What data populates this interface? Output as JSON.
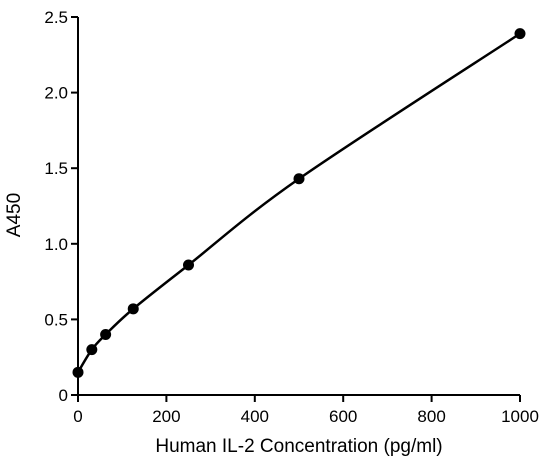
{
  "chart_data": {
    "type": "scatter",
    "title": "",
    "xlabel": "Human IL-2  Concentration (pg/ml)",
    "ylabel": "A450",
    "xlim": [
      0,
      1000
    ],
    "ylim": [
      0,
      2.5
    ],
    "x_ticks": [
      "0",
      "200",
      "400",
      "600",
      "800",
      "1000"
    ],
    "y_ticks": [
      "0",
      "0.5",
      "1.0",
      "1.5",
      "2.0",
      "2.5"
    ],
    "grid": false,
    "legend": "none",
    "series": [
      {
        "x": [
          0,
          31.25,
          62.5,
          125,
          250,
          500,
          1000
        ],
        "y": [
          0.15,
          0.3,
          0.4,
          0.57,
          0.86,
          1.43,
          2.39
        ],
        "style": "points with smooth fitted curve"
      }
    ],
    "colors": {
      "line": "#000000",
      "marker": "#000000"
    }
  }
}
